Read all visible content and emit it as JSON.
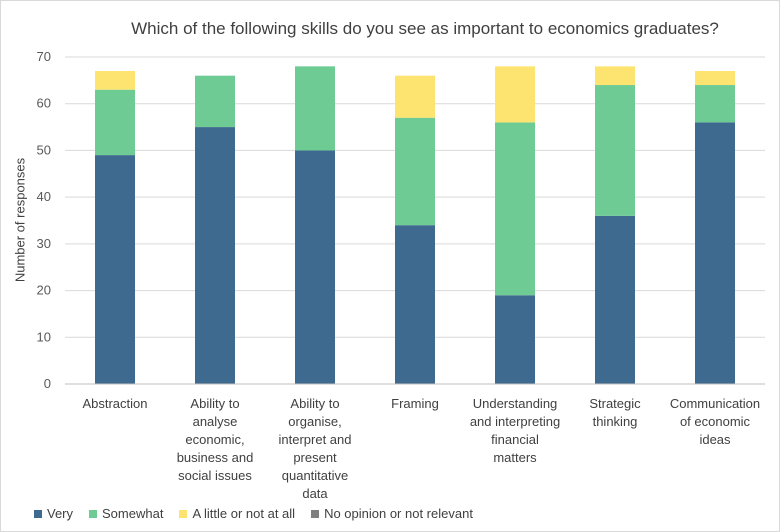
{
  "chart_data": {
    "type": "bar",
    "stacked": true,
    "title": "Which of the following skills do you see as important to economics graduates?",
    "ylabel": "Number of responses",
    "xlabel": "",
    "ylim": [
      0,
      70
    ],
    "yticks": [
      "0",
      "10",
      "20",
      "30",
      "40",
      "50",
      "60",
      "70"
    ],
    "grid": true,
    "legend_position": "bottom",
    "categories": [
      "Abstraction",
      "Ability to\nanalyse\neconomic,\nbusiness and\nsocial issues",
      "Ability to\norganise,\ninterpret and\npresent\nquantitative\ndata",
      "Framing",
      "Understanding\nand interpreting\nfinancial\nmatters",
      "Strategic\nthinking",
      "Communication\nof economic\nideas"
    ],
    "series": [
      {
        "name": "Very",
        "color": "#3f6a8f",
        "values": [
          49,
          55,
          50,
          34,
          19,
          36,
          56
        ]
      },
      {
        "name": "Somewhat",
        "color": "#6dcb93",
        "values": [
          14,
          11,
          18,
          23,
          37,
          28,
          8
        ]
      },
      {
        "name": "A little or not at all",
        "color": "#fde470",
        "values": [
          4,
          0,
          0,
          9,
          12,
          4,
          3
        ]
      },
      {
        "name": "No opinion or not relevant",
        "color": "#7f7f7f",
        "values": [
          0,
          0,
          0,
          0,
          0,
          0,
          0
        ]
      }
    ]
  }
}
